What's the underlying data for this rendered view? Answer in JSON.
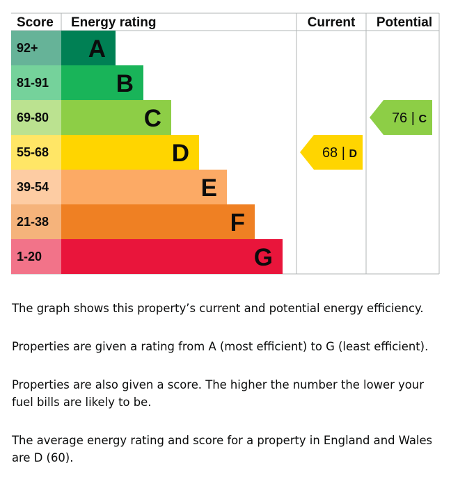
{
  "chart_data": {
    "type": "epc-energy-rating",
    "headers": {
      "score": "Score",
      "rating": "Energy rating",
      "current": "Current",
      "potential": "Potential"
    },
    "bands": [
      {
        "letter": "A",
        "range": "92+",
        "min": 92,
        "max": 100,
        "color": "#008054",
        "score_bg": "#66b398"
      },
      {
        "letter": "B",
        "range": "81-91",
        "min": 81,
        "max": 91,
        "color": "#19b459",
        "score_bg": "#75d29b"
      },
      {
        "letter": "C",
        "range": "69-80",
        "min": 69,
        "max": 80,
        "color": "#8dce46",
        "score_bg": "#bbe290"
      },
      {
        "letter": "D",
        "range": "55-68",
        "min": 55,
        "max": 68,
        "color": "#ffd500",
        "score_bg": "#ffe666"
      },
      {
        "letter": "E",
        "range": "39-54",
        "min": 39,
        "max": 54,
        "color": "#fcaa65",
        "score_bg": "#fdcca3"
      },
      {
        "letter": "F",
        "range": "21-38",
        "min": 21,
        "max": 38,
        "color": "#ef8023",
        "score_bg": "#f5b37b"
      },
      {
        "letter": "G",
        "range": "1-20",
        "min": 1,
        "max": 20,
        "color": "#e9153b",
        "score_bg": "#f27389"
      }
    ],
    "current": {
      "score": 68,
      "letter": "D",
      "color": "#ffd500"
    },
    "potential": {
      "score": 76,
      "letter": "C",
      "color": "#8dce46"
    }
  },
  "text": {
    "p1": "The graph shows this property’s current and potential energy efficiency.",
    "p2": "Properties are given a rating from A (most efficient) to G (least efficient).",
    "p3": "Properties are also given a score. The higher the number the lower your fuel bills are likely to be.",
    "p4": "The average energy rating and score for a property in England and Wales are D (60)."
  }
}
